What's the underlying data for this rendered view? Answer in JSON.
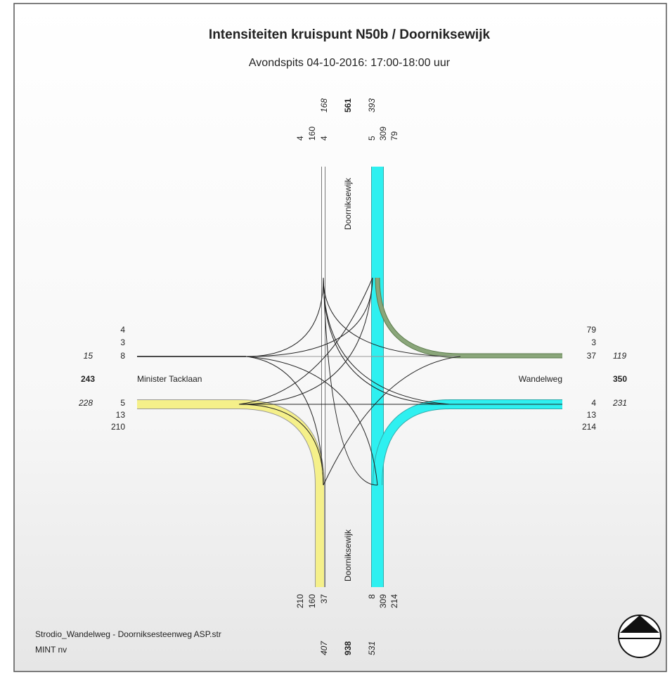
{
  "header": {
    "title": "Intensiteiten kruispunt N50b / Doorniksewijk",
    "subtitle": "Avondspits 04-10-2016: 17:00-18:00 uur"
  },
  "arms": {
    "north": {
      "road": "Doorniksewijk",
      "left_flows": [
        4,
        160,
        4
      ],
      "left_total": 168,
      "total": 561,
      "right_total": 393,
      "right_flows": [
        5,
        309,
        79
      ]
    },
    "south": {
      "road": "Doorniksewijk",
      "left_flows": [
        210,
        160,
        37
      ],
      "left_total": 407,
      "total": 938,
      "right_total": 531,
      "right_flows": [
        8,
        309,
        214
      ]
    },
    "west": {
      "road": "Minister Tacklaan",
      "top_flows": [
        4,
        3,
        8
      ],
      "top_total": 15,
      "total": 243,
      "bottom_total": 228,
      "bottom_flows": [
        5,
        13,
        210
      ]
    },
    "east": {
      "road": "Wandelweg",
      "top_flows": [
        79,
        3,
        37
      ],
      "top_total": 119,
      "total": 350,
      "bottom_total": 231,
      "bottom_flows": [
        4,
        13,
        214
      ]
    }
  },
  "footer": {
    "file": "Strodio_Wandelweg - Doorniksesteenweg ASP.str",
    "company": "MINT nv"
  }
}
